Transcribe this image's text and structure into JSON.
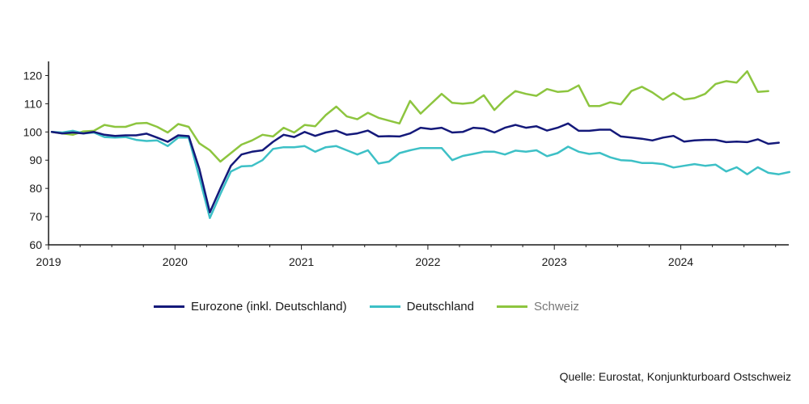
{
  "chart_data": {
    "type": "line",
    "x_start": "2019-01",
    "x_step": "month",
    "x_ticks": [
      "2019",
      "2020",
      "2021",
      "2022",
      "2023",
      "2024"
    ],
    "y_ticks": [
      "60",
      "70",
      "80",
      "90",
      "100",
      "110",
      "120"
    ],
    "ylim": [
      60,
      125
    ],
    "grid": false,
    "legend_position": "bottom",
    "series": [
      {
        "name": "Eurozone (inkl. Deutschland)",
        "color": "#14197a",
        "values": [
          100,
          99.5,
          99.8,
          99.5,
          100,
          99,
          98.6,
          98.8,
          98.8,
          99.4,
          98,
          96.5,
          98.8,
          98.5,
          87,
          71.5,
          80,
          88,
          92,
          93,
          93.5,
          96.5,
          99,
          98.2,
          100,
          98.6,
          99.8,
          100.5,
          99,
          99.5,
          100.5,
          98.4,
          98.5,
          98.4,
          99.5,
          101.5,
          101,
          101.5,
          99.8,
          100,
          101.5,
          101.2,
          99.8,
          101.5,
          102.5,
          101.5,
          102,
          100.5,
          101.5,
          103,
          100.4,
          100.4,
          100.8,
          100.8,
          98.4,
          98,
          97.6,
          97,
          98,
          98.6,
          96.6,
          97,
          97.2,
          97.2,
          96.4,
          96.6,
          96.4,
          97.4,
          95.8,
          96.2
        ]
      },
      {
        "name": "Deutschland",
        "color": "#3dc0c6",
        "values": [
          100,
          99.8,
          100.4,
          99.5,
          99.8,
          98.2,
          98,
          98.2,
          97.2,
          96.8,
          97,
          95,
          98,
          98,
          84,
          69.5,
          78,
          86,
          87.8,
          88,
          90,
          94,
          94.6,
          94.6,
          95,
          93,
          94.6,
          95,
          93.5,
          92,
          93.5,
          88.8,
          89.5,
          92.5,
          93.5,
          94.3,
          94.3,
          94.3,
          90,
          91.5,
          92.2,
          93,
          93,
          92,
          93.4,
          93,
          93.5,
          91.4,
          92.5,
          94.8,
          93,
          92.2,
          92.6,
          91,
          90,
          89.8,
          89,
          89,
          88.6,
          87.4,
          88,
          88.6,
          88,
          88.4,
          86,
          87.5,
          85,
          87.5,
          85.5,
          85,
          85.8
        ]
      },
      {
        "name": "Schweiz",
        "color": "#8dc53f",
        "values": [
          100,
          99.5,
          99,
          100.2,
          100.4,
          102.5,
          101.8,
          101.8,
          103,
          103.2,
          101.8,
          99.8,
          102.8,
          101.8,
          96,
          93.5,
          89.5,
          92.5,
          95.5,
          97,
          99,
          98.4,
          101.5,
          99.8,
          102.5,
          102,
          106,
          109,
          105.5,
          104.5,
          106.8,
          105,
          104,
          103,
          111,
          106.5,
          110,
          113.5,
          110.3,
          110,
          110.4,
          113,
          107.8,
          111.5,
          114.5,
          113.5,
          112.8,
          115.2,
          114.2,
          114.5,
          116.5,
          109.2,
          109.2,
          110.5,
          109.8,
          114.5,
          116,
          114,
          111.4,
          113.8,
          111.5,
          112,
          113.5,
          117,
          118,
          117.5,
          121.5,
          114.2,
          114.5
        ]
      }
    ],
    "source": "Quelle: Eurostat, Konjunkturboard Ostschweiz"
  }
}
